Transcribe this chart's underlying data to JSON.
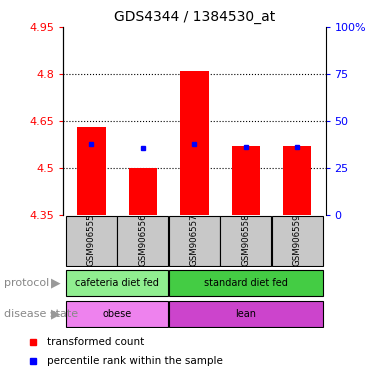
{
  "title": "GDS4344 / 1384530_at",
  "samples": [
    "GSM906555",
    "GSM906556",
    "GSM906557",
    "GSM906558",
    "GSM906559"
  ],
  "red_values": [
    4.63,
    4.5,
    4.81,
    4.57,
    4.57
  ],
  "blue_values": [
    4.575,
    4.565,
    4.575,
    4.566,
    4.566
  ],
  "ylim_left": [
    4.35,
    4.95
  ],
  "yticks_left": [
    4.35,
    4.5,
    4.65,
    4.8,
    4.95
  ],
  "yticks_right": [
    0,
    25,
    50,
    75,
    100
  ],
  "ytick_labels_left": [
    "4.35",
    "4.5",
    "4.65",
    "4.8",
    "4.95"
  ],
  "ytick_labels_right": [
    "0",
    "25",
    "50",
    "75",
    "100%"
  ],
  "hlines": [
    4.5,
    4.65,
    4.8
  ],
  "bar_bottom": 4.35,
  "bar_width": 0.55,
  "protocol_groups": [
    {
      "label": "cafeteria diet fed",
      "samples": [
        0,
        1
      ],
      "color": "#90EE90"
    },
    {
      "label": "standard diet fed",
      "samples": [
        2,
        3,
        4
      ],
      "color": "#44CC44"
    }
  ],
  "disease_groups": [
    {
      "label": "obese",
      "samples": [
        0,
        1
      ],
      "color": "#EE82EE"
    },
    {
      "label": "lean",
      "samples": [
        2,
        3,
        4
      ],
      "color": "#CC44CC"
    }
  ],
  "protocol_row_label": "protocol",
  "disease_row_label": "disease state",
  "legend_red": "transformed count",
  "legend_blue": "percentile rank within the sample",
  "bg_color": "#FFFFFF",
  "sample_box_color": "#C8C8C8",
  "title_fontsize": 10,
  "tick_fontsize": 8,
  "label_fontsize": 8
}
